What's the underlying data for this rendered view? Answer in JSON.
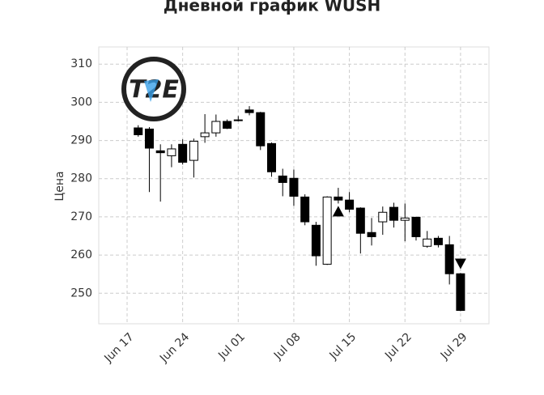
{
  "chart_data": {
    "type": "candlestick",
    "title": "Дневной график WUSH",
    "y_label": "Цена",
    "categories": [
      "Jun 17",
      null,
      null,
      null,
      null,
      "Jun 24",
      null,
      null,
      null,
      null,
      "Jul 01",
      null,
      null,
      null,
      null,
      "Jul 08",
      null,
      null,
      null,
      null,
      "Jul 15",
      null,
      null,
      null,
      null,
      "Jul 22",
      null,
      null,
      null,
      null,
      "Jul 29"
    ],
    "open": [
      null,
      293.3,
      293,
      287.3,
      286,
      289,
      284.8,
      291,
      292,
      295,
      295.4,
      298,
      297.3,
      289.2,
      280.7,
      280.1,
      275.2,
      267.8,
      257.6,
      275.2,
      274.4,
      272.3,
      265.9,
      268.7,
      272.5,
      269.1,
      269.9,
      262.3,
      264.4,
      262.7,
      255.1
    ],
    "high": [
      null,
      294,
      293.5,
      289,
      289,
      290.3,
      290.5,
      296.9,
      296.8,
      295.5,
      296.4,
      299,
      297.5,
      289.5,
      282.6,
      282.4,
      275.9,
      268.7,
      275.4,
      277.6,
      276.5,
      272.5,
      269.7,
      272.7,
      273.7,
      273.5,
      270,
      266.3,
      265,
      265,
      255.3
    ],
    "low": [
      null,
      291,
      276.5,
      274,
      283,
      283.7,
      280.3,
      289.4,
      291,
      293,
      295,
      296.6,
      287.5,
      280.5,
      275.4,
      272.9,
      267.8,
      257.2,
      257.4,
      273.5,
      271.2,
      260.4,
      262.5,
      265.3,
      267.2,
      263.6,
      263.8,
      261.9,
      262,
      252.3,
      245.3
    ],
    "close": [
      null,
      291.5,
      288,
      286.8,
      287.8,
      284.3,
      289.8,
      292,
      295,
      293.2,
      295.2,
      297.3,
      288.6,
      281.8,
      279,
      275.4,
      268.7,
      259.8,
      275.2,
      274.4,
      272,
      265.7,
      264.8,
      271.2,
      269.1,
      269.7,
      264.8,
      264.2,
      262.7,
      255.1,
      245.5
    ],
    "buy_markers": [
      null,
      null,
      null,
      null,
      null,
      null,
      null,
      null,
      null,
      null,
      null,
      null,
      null,
      null,
      null,
      null,
      null,
      null,
      null,
      271.4,
      null,
      null,
      null,
      null,
      null,
      null,
      null,
      null,
      null,
      null,
      null
    ],
    "sell_markers": [
      null,
      null,
      null,
      null,
      null,
      null,
      null,
      null,
      null,
      null,
      null,
      null,
      null,
      null,
      null,
      null,
      null,
      null,
      null,
      null,
      null,
      null,
      null,
      null,
      null,
      null,
      null,
      null,
      null,
      null,
      257.8
    ],
    "up_color": "#ffffff",
    "down_color": "#000000",
    "ylim": [
      242,
      314.5
    ],
    "yticks": [
      250,
      260,
      270,
      280,
      290,
      300,
      310
    ],
    "grid": true
  }
}
